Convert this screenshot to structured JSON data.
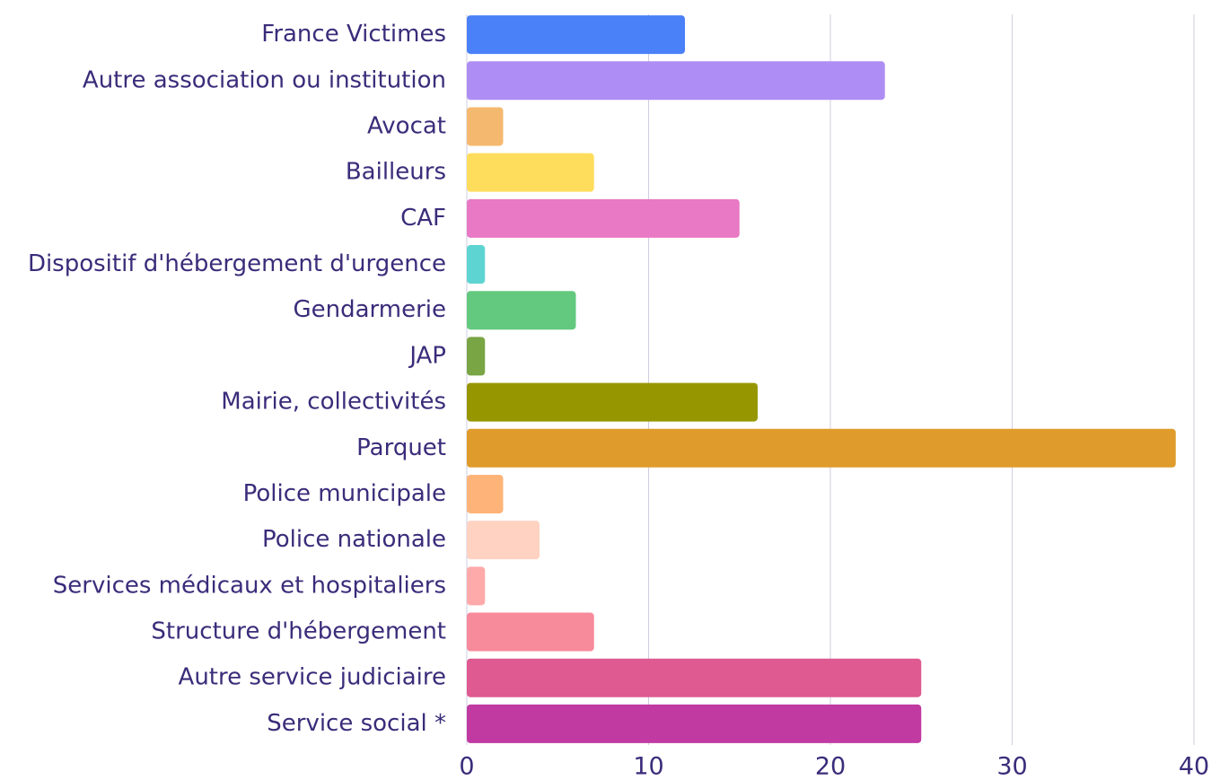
{
  "chart_data": {
    "type": "bar",
    "orientation": "horizontal",
    "categories": [
      "France Victimes",
      "Autre association ou institution",
      "Avocat",
      "Bailleurs",
      "CAF",
      "Dispositif d'hébergement d'urgence",
      "Gendarmerie",
      "JAP",
      "Mairie, collectivités",
      "Parquet",
      "Police municipale",
      "Police nationale",
      "Services médicaux et hospitaliers",
      "Structure d'hébergement",
      "Autre service judiciaire",
      "Service social *"
    ],
    "values": [
      12,
      23,
      2,
      7,
      15,
      1,
      6,
      1,
      16,
      39,
      2,
      4,
      1,
      7,
      25,
      25
    ],
    "colors": [
      "#4a80f8",
      "#ae8ef4",
      "#f4b96f",
      "#fedd5c",
      "#e979c4",
      "#5ed4d2",
      "#62c97f",
      "#79a545",
      "#969700",
      "#df9c2c",
      "#feb478",
      "#ffd2c2",
      "#ffaaaa",
      "#f78a9b",
      "#de5a91",
      "#c03aa2"
    ],
    "xlim": [
      0,
      40
    ],
    "xticks": [
      0,
      10,
      20,
      30,
      40
    ],
    "grid": true
  }
}
